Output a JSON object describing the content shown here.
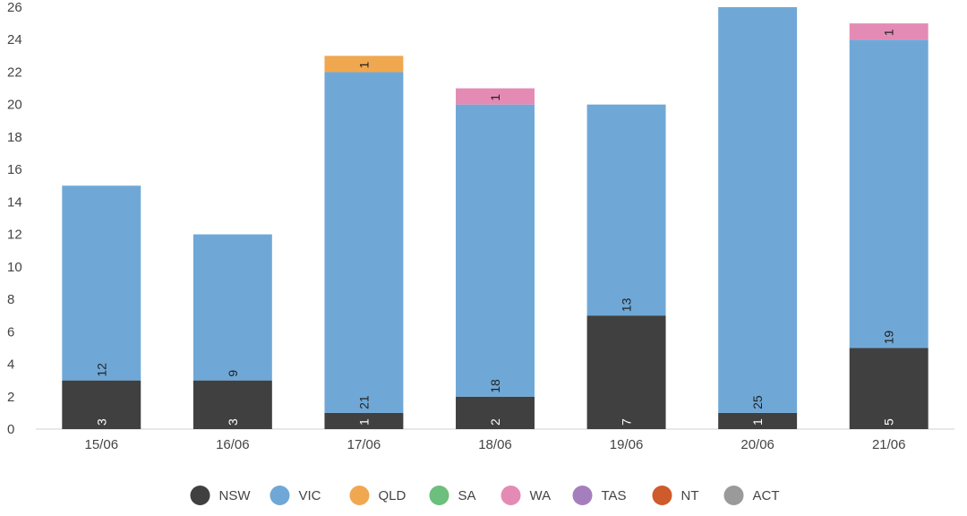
{
  "chart_data": {
    "type": "bar",
    "stacked": true,
    "categories": [
      "15/06",
      "16/06",
      "17/06",
      "18/06",
      "19/06",
      "20/06",
      "21/06"
    ],
    "ylim": [
      0,
      26
    ],
    "yticks": [
      0,
      2,
      4,
      6,
      8,
      10,
      12,
      14,
      16,
      18,
      20,
      22,
      24,
      26
    ],
    "grid": false,
    "legend_position": "bottom",
    "series": [
      {
        "name": "NSW",
        "color": "#404040",
        "values": [
          3,
          3,
          1,
          2,
          7,
          1,
          5
        ],
        "labels": [
          "3",
          "3",
          "1",
          "2",
          "7",
          "1",
          "5"
        ]
      },
      {
        "name": "VIC",
        "color": "#6fa8d7",
        "values": [
          12,
          9,
          21,
          18,
          13,
          25,
          19
        ],
        "labels": [
          "12",
          "9",
          "21",
          "18",
          "13",
          "25",
          "19"
        ]
      },
      {
        "name": "QLD",
        "color": "#f0a850",
        "values": [
          0,
          0,
          1,
          0,
          0,
          0,
          0
        ],
        "labels": [
          "",
          "",
          "1",
          "",
          "",
          "",
          ""
        ]
      },
      {
        "name": "SA",
        "color": "#6cbf7c",
        "values": [
          0,
          0,
          0,
          0,
          0,
          0,
          0
        ],
        "labels": [
          "",
          "",
          "",
          "",
          "",
          "",
          ""
        ]
      },
      {
        "name": "WA",
        "color": "#e48bb5",
        "values": [
          0,
          0,
          0,
          1,
          0,
          0,
          1
        ],
        "labels": [
          "",
          "",
          "",
          "1",
          "",
          "",
          "1"
        ]
      },
      {
        "name": "TAS",
        "color": "#a57fbd",
        "values": [
          0,
          0,
          0,
          0,
          0,
          0,
          0
        ],
        "labels": [
          "",
          "",
          "",
          "",
          "",
          "",
          ""
        ]
      },
      {
        "name": "NT",
        "color": "#cf5a2c",
        "values": [
          0,
          0,
          0,
          0,
          0,
          0,
          0
        ],
        "labels": [
          "",
          "",
          "",
          "",
          "",
          "",
          ""
        ]
      },
      {
        "name": "ACT",
        "color": "#9a9a9a",
        "values": [
          0,
          0,
          0,
          0,
          0,
          0,
          0
        ],
        "labels": [
          "",
          "",
          "",
          "",
          "",
          "",
          ""
        ]
      }
    ]
  }
}
